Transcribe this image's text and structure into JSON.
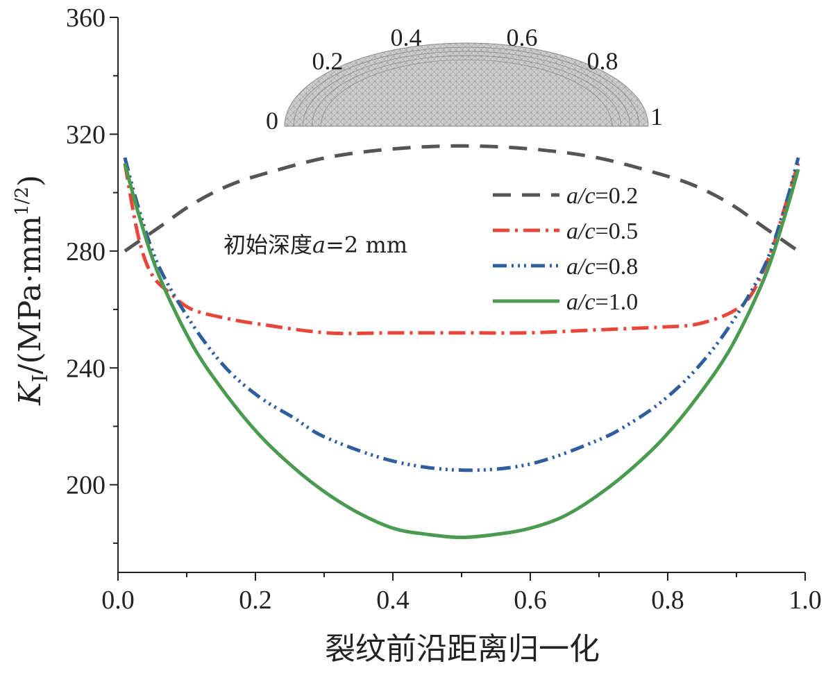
{
  "chart_data": {
    "type": "line",
    "xlabel": "裂纹前沿距离归一化",
    "ylabel": {
      "symbol": "K",
      "subscript": "I",
      "unit_open": "/(MPa·mm",
      "unit_sup": "1/2",
      "unit_close": ")"
    },
    "xlim": [
      0.0,
      1.0
    ],
    "ylim": [
      170,
      360
    ],
    "x_ticks": [
      0.0,
      0.2,
      0.4,
      0.6,
      0.8,
      1.0
    ],
    "x_tick_labels": [
      "0.0",
      "0.2",
      "0.4",
      "0.6",
      "0.8",
      "1.0"
    ],
    "y_ticks": [
      200,
      240,
      280,
      320,
      360
    ],
    "y_tick_labels": [
      "200",
      "240",
      "280",
      "320",
      "360"
    ],
    "legend_position": "top-right",
    "annotation": {
      "prefix": "初始深度",
      "var": "a",
      "suffix": "=2 mm"
    },
    "inset": {
      "description": "half-ellipse crack front mesh",
      "labels": [
        "0",
        "0.2",
        "0.4",
        "0.6",
        "0.8",
        "1"
      ]
    },
    "series": [
      {
        "name": "a/c=0.2",
        "var": "a/c",
        "value_text": "=0.2",
        "color": "#555555",
        "dash": "26,16",
        "x": [
          0.0,
          0.05,
          0.1,
          0.15,
          0.2,
          0.3,
          0.4,
          0.5,
          0.6,
          0.7,
          0.8,
          0.85,
          0.9,
          0.95,
          1.0
        ],
        "y": [
          280,
          288,
          296,
          302,
          306,
          312,
          315,
          316,
          315,
          312,
          306,
          302,
          296,
          288,
          280
        ]
      },
      {
        "name": "a/c=0.5",
        "var": "a/c",
        "value_text": "=0.5",
        "color": "#e8463b",
        "dash": "24,8,4,8",
        "x": [
          0.0,
          0.02,
          0.04,
          0.07,
          0.1,
          0.15,
          0.2,
          0.3,
          0.4,
          0.5,
          0.6,
          0.7,
          0.8,
          0.85,
          0.9,
          0.93,
          0.96,
          0.98,
          1.0
        ],
        "y": [
          310,
          285,
          272,
          265,
          260,
          257,
          255,
          252,
          252,
          252,
          252,
          253,
          254,
          255,
          259,
          265,
          280,
          295,
          310
        ]
      },
      {
        "name": "a/c=0.8",
        "var": "a/c",
        "value_text": "=0.8",
        "color": "#2f5e9e",
        "dash": "20,7,3,6,3,6,3,7",
        "x": [
          0.0,
          0.02,
          0.05,
          0.1,
          0.15,
          0.2,
          0.25,
          0.3,
          0.4,
          0.5,
          0.6,
          0.7,
          0.75,
          0.8,
          0.85,
          0.9,
          0.95,
          0.98,
          1.0
        ],
        "y": [
          312,
          295,
          275,
          255,
          240,
          230,
          223,
          216,
          208,
          205,
          207,
          215,
          221,
          229,
          240,
          255,
          275,
          295,
          312
        ]
      },
      {
        "name": "a/c=1.0",
        "var": "a/c",
        "value_text": "=1.0",
        "color": "#4a9a4f",
        "dash": "",
        "x": [
          0.0,
          0.02,
          0.05,
          0.1,
          0.15,
          0.2,
          0.25,
          0.3,
          0.35,
          0.4,
          0.45,
          0.5,
          0.55,
          0.6,
          0.65,
          0.7,
          0.75,
          0.8,
          0.85,
          0.9,
          0.95,
          0.98,
          1.0
        ],
        "y": [
          310,
          293,
          272,
          248,
          231,
          217,
          206,
          197,
          190,
          185,
          183,
          182,
          183,
          185,
          189,
          196,
          205,
          216,
          230,
          247,
          271,
          292,
          308
        ]
      }
    ]
  }
}
